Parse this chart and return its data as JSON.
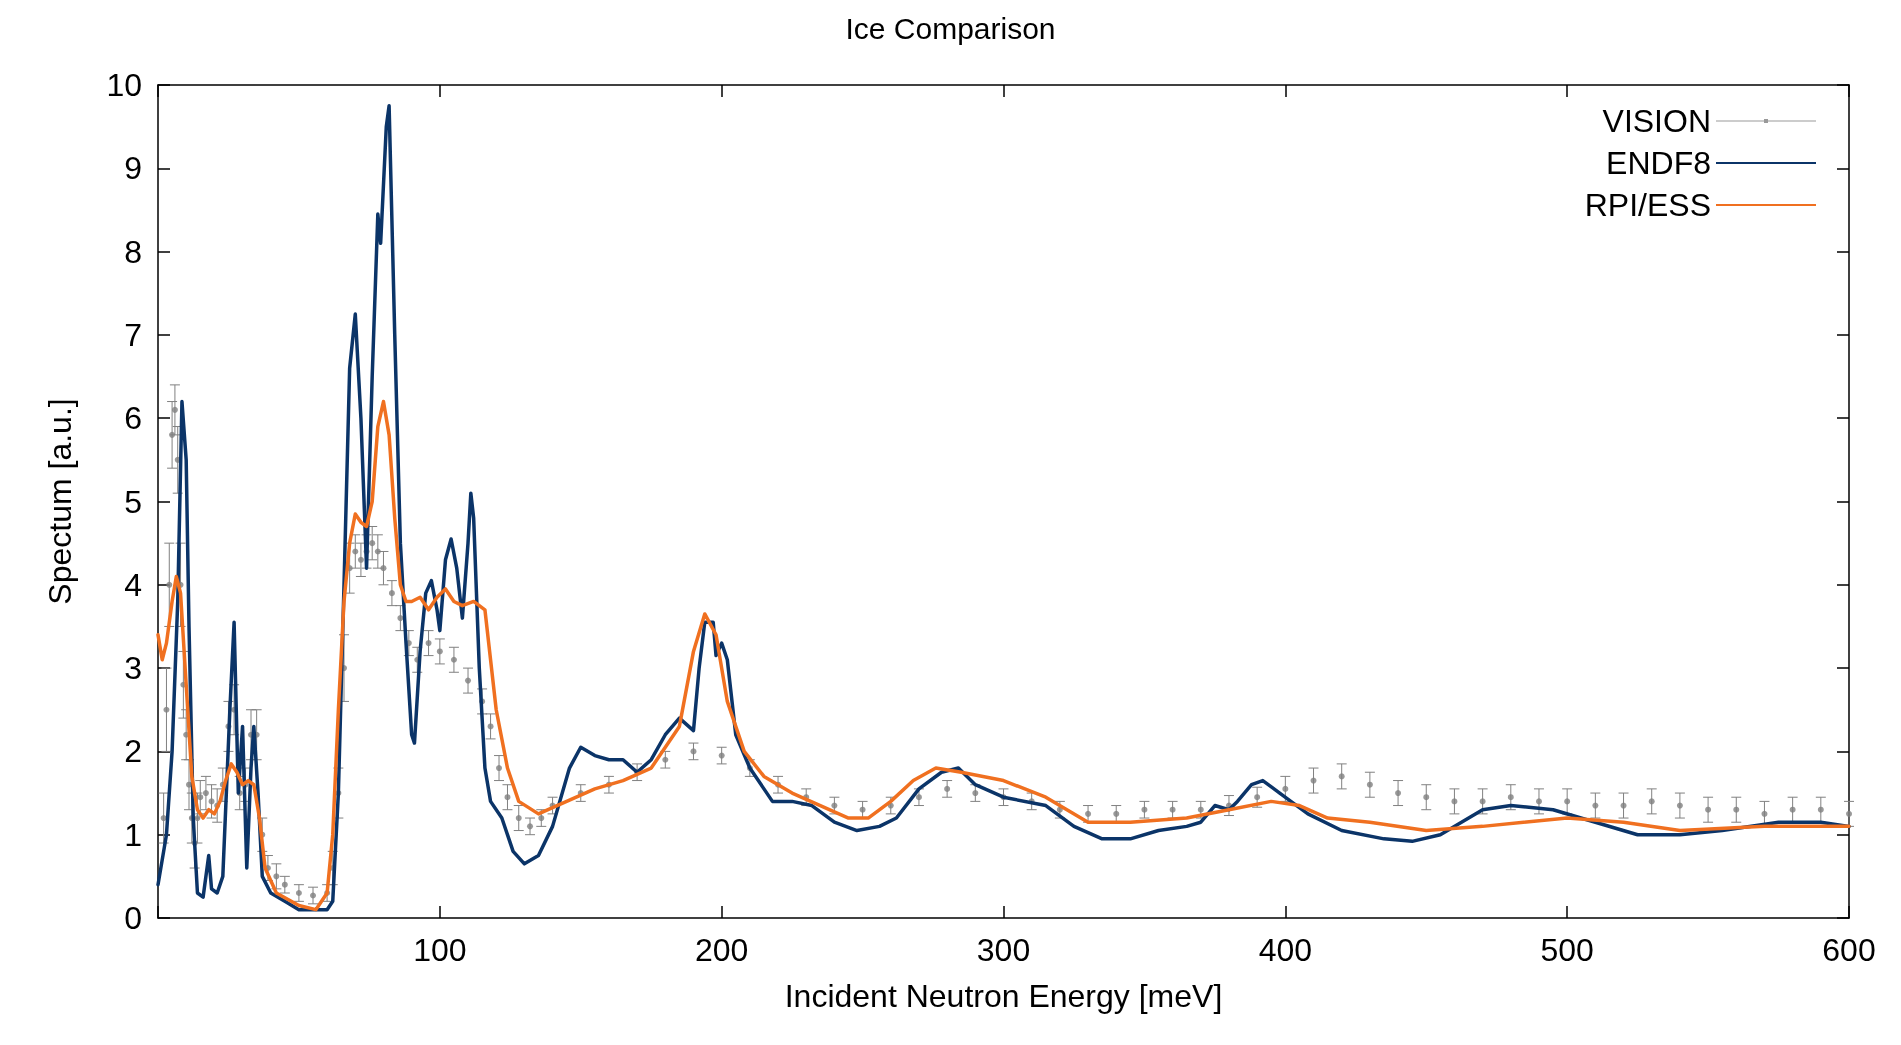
{
  "chart_data": {
    "type": "line",
    "title": "Ice Comparison",
    "xlabel": "Incident Neutron Energy [meV]",
    "ylabel": "Spectum [a.u.]",
    "xlim": [
      0,
      600
    ],
    "xticks": [
      {
        "value": 0,
        "label": null
      },
      100,
      200,
      300,
      400,
      500,
      600
    ],
    "ylim": [
      0,
      10
    ],
    "yticks": [
      0,
      1,
      2,
      3,
      4,
      5,
      6,
      7,
      8,
      9,
      10
    ],
    "grid": false,
    "legend": "top right",
    "series": [
      {
        "name": "VISION",
        "type": "scatter",
        "marker": "circle",
        "color": "#808080",
        "x": [
          2,
          3,
          4,
          5,
          6,
          7,
          8,
          9,
          10,
          11,
          12,
          13,
          14,
          15,
          17,
          19,
          21,
          23,
          25,
          27,
          29,
          31,
          33,
          35,
          37,
          39,
          42,
          45,
          50,
          55,
          60,
          62,
          64,
          66,
          68,
          70,
          72,
          74,
          76,
          78,
          80,
          83,
          86,
          89,
          92,
          96,
          100,
          105,
          110,
          115,
          118,
          121,
          124,
          128,
          132,
          136,
          140,
          150,
          160,
          170,
          180,
          190,
          200,
          210,
          220,
          230,
          240,
          250,
          260,
          270,
          280,
          290,
          300,
          310,
          320,
          330,
          340,
          350,
          360,
          370,
          380,
          390,
          400,
          410,
          420,
          430,
          440,
          450,
          460,
          470,
          480,
          490,
          500,
          510,
          520,
          530,
          540,
          550,
          560,
          570,
          580,
          590,
          600
        ],
        "values": [
          1.2,
          2.5,
          4,
          5.8,
          6.1,
          5.5,
          4,
          2.8,
          2.2,
          1.6,
          1.2,
          0.9,
          1.2,
          1.45,
          1.5,
          1.4,
          1.35,
          1.6,
          2.3,
          2.5,
          1.5,
          1.6,
          2.2,
          2.2,
          1,
          0.6,
          0.5,
          0.4,
          0.3,
          0.27,
          0.3,
          0.6,
          1.5,
          3,
          4.2,
          4.4,
          4.3,
          4.4,
          4.5,
          4.4,
          4.2,
          3.9,
          3.6,
          3.3,
          3.1,
          3.3,
          3.2,
          3.1,
          2.85,
          2.6,
          2.3,
          1.8,
          1.45,
          1.2,
          1.1,
          1.2,
          1.35,
          1.5,
          1.6,
          1.75,
          1.9,
          2,
          1.95,
          1.8,
          1.6,
          1.45,
          1.35,
          1.3,
          1.35,
          1.45,
          1.55,
          1.5,
          1.45,
          1.4,
          1.3,
          1.25,
          1.25,
          1.3,
          1.3,
          1.3,
          1.35,
          1.45,
          1.55,
          1.65,
          1.7,
          1.6,
          1.5,
          1.45,
          1.4,
          1.4,
          1.45,
          1.4,
          1.4,
          1.35,
          1.35,
          1.4,
          1.35,
          1.3,
          1.3,
          1.25,
          1.3,
          1.3,
          1.25
        ],
        "errors": [
          0.3,
          0.5,
          0.5,
          0.4,
          0.3,
          0.4,
          0.5,
          0.4,
          0.3,
          0.3,
          0.3,
          0.3,
          0.3,
          0.2,
          0.2,
          0.2,
          0.2,
          0.2,
          0.3,
          0.3,
          0.2,
          0.2,
          0.3,
          0.3,
          0.2,
          0.15,
          0.15,
          0.1,
          0.1,
          0.1,
          0.1,
          0.2,
          0.3,
          0.4,
          0.3,
          0.2,
          0.2,
          0.2,
          0.2,
          0.2,
          0.2,
          0.15,
          0.15,
          0.15,
          0.15,
          0.15,
          0.15,
          0.15,
          0.15,
          0.15,
          0.15,
          0.15,
          0.15,
          0.15,
          0.1,
          0.1,
          0.1,
          0.1,
          0.1,
          0.1,
          0.1,
          0.1,
          0.1,
          0.1,
          0.1,
          0.1,
          0.1,
          0.1,
          0.1,
          0.1,
          0.1,
          0.1,
          0.1,
          0.1,
          0.1,
          0.1,
          0.1,
          0.1,
          0.1,
          0.1,
          0.12,
          0.12,
          0.15,
          0.15,
          0.15,
          0.15,
          0.15,
          0.15,
          0.15,
          0.15,
          0.15,
          0.15,
          0.15,
          0.15,
          0.15,
          0.15,
          0.15,
          0.15,
          0.15,
          0.15,
          0.15,
          0.15,
          0.15
        ]
      },
      {
        "name": "ENDF8",
        "marker": "none",
        "line_style": "solid",
        "color": "#0b3468",
        "x": [
          0,
          3,
          5,
          7,
          8.5,
          10,
          11,
          12.5,
          14,
          16,
          18,
          19,
          21,
          23,
          25.5,
          27,
          28.5,
          30,
          31.5,
          33,
          34,
          35.5,
          37,
          40,
          45,
          50,
          55,
          60,
          62,
          64,
          66,
          68,
          70,
          72,
          74,
          76,
          78,
          79,
          81,
          82,
          84,
          86,
          88,
          90,
          91,
          93,
          95,
          97,
          99,
          100,
          102,
          104,
          106,
          108,
          110,
          111,
          112,
          114,
          116,
          118,
          122,
          126,
          130,
          135,
          140,
          146,
          150,
          155,
          160,
          165,
          170,
          175,
          180,
          185,
          190,
          192,
          194,
          197,
          198,
          200,
          202,
          205,
          210,
          215,
          218,
          225,
          232,
          240,
          248,
          256,
          262,
          270,
          278,
          284,
          290,
          300,
          315,
          325,
          335,
          345,
          355,
          365,
          370,
          375,
          380,
          383,
          388,
          392,
          398,
          408,
          420,
          435,
          445,
          455,
          470,
          480,
          495,
          510,
          525,
          540,
          555,
          575,
          590,
          600
        ],
        "values": [
          0.4,
          1,
          2,
          3.8,
          6.2,
          5.5,
          3.5,
          1.2,
          0.3,
          0.25,
          0.75,
          0.35,
          0.3,
          0.5,
          2.5,
          3.55,
          1.5,
          2.3,
          0.6,
          1.8,
          2.3,
          1.5,
          0.5,
          0.3,
          0.2,
          0.1,
          0.1,
          0.1,
          0.2,
          1.5,
          4,
          6.6,
          7.25,
          6,
          4.2,
          6.5,
          8.45,
          8.1,
          9.5,
          9.75,
          7,
          4.5,
          3.3,
          2.2,
          2.1,
          3.2,
          3.9,
          4.05,
          3.7,
          3.45,
          4.3,
          4.55,
          4.2,
          3.6,
          4.5,
          5.1,
          4.8,
          3,
          1.8,
          1.4,
          1.2,
          0.8,
          0.65,
          0.75,
          1.1,
          1.8,
          2.05,
          1.95,
          1.9,
          1.9,
          1.75,
          1.9,
          2.2,
          2.4,
          2.25,
          3,
          3.55,
          3.55,
          3.15,
          3.3,
          3.1,
          2.2,
          1.8,
          1.55,
          1.4,
          1.4,
          1.35,
          1.15,
          1.05,
          1.1,
          1.2,
          1.55,
          1.75,
          1.8,
          1.6,
          1.45,
          1.35,
          1.1,
          0.95,
          0.95,
          1.05,
          1.1,
          1.15,
          1.35,
          1.3,
          1.4,
          1.6,
          1.65,
          1.5,
          1.25,
          1.05,
          0.95,
          0.92,
          1,
          1.3,
          1.35,
          1.3,
          1.15,
          1,
          1,
          1.05,
          1.15,
          1.15,
          1.1
        ]
      },
      {
        "name": "RPI/ESS",
        "marker": "none",
        "line_style": "solid",
        "color": "#f07020",
        "x": [
          0,
          1.5,
          3,
          5,
          6.5,
          8,
          10,
          12,
          14,
          16,
          18,
          20,
          22,
          24,
          26,
          28,
          30,
          32,
          34,
          36,
          38,
          42,
          50,
          56,
          60,
          62,
          64,
          66,
          68,
          70,
          72,
          74,
          76,
          78,
          80,
          82,
          84,
          86,
          88,
          90,
          93,
          96,
          99,
          102,
          105,
          108,
          112,
          116,
          120,
          124,
          128,
          135,
          145,
          155,
          165,
          175,
          185,
          190,
          194,
          198,
          202,
          208,
          215,
          225,
          235,
          245,
          252,
          260,
          268,
          276,
          285,
          300,
          315,
          330,
          345,
          365,
          380,
          395,
          405,
          415,
          430,
          450,
          470,
          500,
          520,
          540,
          570,
          600
        ],
        "values": [
          3.4,
          3.1,
          3.3,
          3.8,
          4.1,
          3.9,
          2.8,
          1.7,
          1.3,
          1.2,
          1.3,
          1.25,
          1.4,
          1.65,
          1.85,
          1.75,
          1.6,
          1.65,
          1.6,
          1.2,
          0.6,
          0.3,
          0.15,
          0.1,
          0.3,
          1,
          2.5,
          3.8,
          4.5,
          4.85,
          4.75,
          4.7,
          5,
          5.9,
          6.2,
          5.8,
          4.8,
          4,
          3.8,
          3.8,
          3.85,
          3.7,
          3.85,
          3.95,
          3.8,
          3.75,
          3.8,
          3.7,
          2.5,
          1.8,
          1.4,
          1.25,
          1.4,
          1.55,
          1.65,
          1.8,
          2.3,
          3.2,
          3.65,
          3.4,
          2.6,
          2,
          1.7,
          1.5,
          1.35,
          1.2,
          1.2,
          1.4,
          1.65,
          1.8,
          1.75,
          1.65,
          1.45,
          1.15,
          1.15,
          1.2,
          1.3,
          1.4,
          1.35,
          1.2,
          1.15,
          1.05,
          1.1,
          1.2,
          1.15,
          1.05,
          1.1,
          1.1
        ]
      }
    ]
  }
}
